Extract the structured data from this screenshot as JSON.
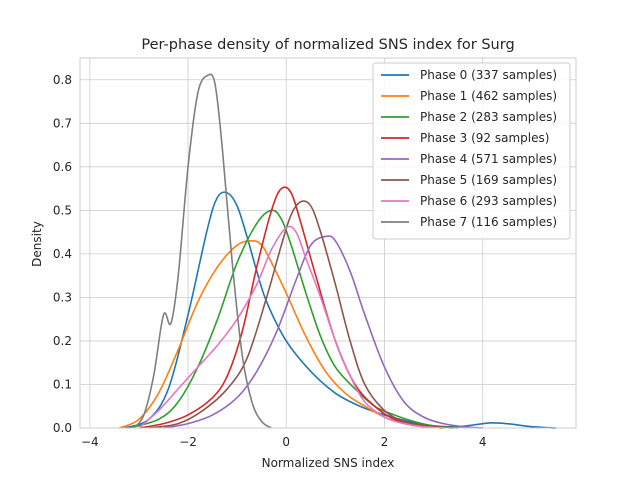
{
  "chart_data": {
    "type": "line",
    "title": "Per-phase density of normalized SNS index for Surg",
    "xlabel": "Normalized SNS index",
    "ylabel": "Density",
    "xlim": [
      -4.2,
      5.9
    ],
    "ylim": [
      0,
      0.85
    ],
    "xticks": [
      -4,
      -2,
      0,
      2,
      4
    ],
    "xtick_labels": [
      "−4",
      "−2",
      "0",
      "2",
      "4"
    ],
    "yticks": [
      0.0,
      0.1,
      0.2,
      0.3,
      0.4,
      0.5,
      0.6,
      0.7,
      0.8
    ],
    "ytick_labels": [
      "0.0",
      "0.1",
      "0.2",
      "0.3",
      "0.4",
      "0.5",
      "0.6",
      "0.7",
      "0.8"
    ],
    "grid": true,
    "legend_position": "upper right",
    "series": [
      {
        "name": "Phase 0 (337 samples)",
        "color": "#1f77b4",
        "x": [
          -3.3,
          -2.8,
          -2.4,
          -2.0,
          -1.6,
          -1.4,
          -1.2,
          -1.0,
          -0.8,
          -0.6,
          -0.4,
          0.0,
          0.5,
          1.0,
          1.5,
          2.0,
          2.5,
          3.0,
          3.5,
          4.0,
          4.2,
          4.5,
          5.0,
          5.5
        ],
        "y": [
          0.0,
          0.02,
          0.09,
          0.26,
          0.46,
          0.53,
          0.54,
          0.51,
          0.44,
          0.36,
          0.29,
          0.2,
          0.13,
          0.08,
          0.05,
          0.03,
          0.015,
          0.005,
          0.003,
          0.01,
          0.012,
          0.01,
          0.003,
          0.0
        ]
      },
      {
        "name": "Phase 1 (462 samples)",
        "color": "#ff7f0e",
        "x": [
          -3.4,
          -3.0,
          -2.6,
          -2.2,
          -1.8,
          -1.4,
          -1.0,
          -0.7,
          -0.5,
          -0.3,
          0.0,
          0.4,
          0.8,
          1.2,
          1.6,
          2.0,
          2.4,
          2.8,
          3.2
        ],
        "y": [
          0.0,
          0.02,
          0.08,
          0.18,
          0.29,
          0.37,
          0.42,
          0.43,
          0.42,
          0.38,
          0.31,
          0.21,
          0.13,
          0.08,
          0.05,
          0.025,
          0.01,
          0.003,
          0.0
        ]
      },
      {
        "name": "Phase 2 (283 samples)",
        "color": "#2ca02c",
        "x": [
          -3.2,
          -2.6,
          -2.2,
          -1.8,
          -1.4,
          -1.0,
          -0.6,
          -0.3,
          -0.1,
          0.1,
          0.4,
          0.7,
          1.0,
          1.4,
          1.8,
          2.2,
          2.6,
          3.0,
          3.5
        ],
        "y": [
          0.0,
          0.02,
          0.06,
          0.14,
          0.25,
          0.38,
          0.47,
          0.5,
          0.48,
          0.42,
          0.31,
          0.21,
          0.14,
          0.09,
          0.05,
          0.03,
          0.015,
          0.005,
          0.0
        ]
      },
      {
        "name": "Phase 3 (92 samples)",
        "color": "#d62728",
        "x": [
          -3.0,
          -2.5,
          -2.0,
          -1.5,
          -1.2,
          -0.9,
          -0.6,
          -0.3,
          -0.1,
          0.1,
          0.3,
          0.6,
          1.0,
          1.4,
          1.8,
          2.2,
          2.6,
          3.0,
          3.4
        ],
        "y": [
          0.0,
          0.01,
          0.03,
          0.07,
          0.12,
          0.22,
          0.37,
          0.5,
          0.55,
          0.54,
          0.47,
          0.35,
          0.2,
          0.1,
          0.05,
          0.02,
          0.01,
          0.003,
          0.0
        ]
      },
      {
        "name": "Phase 4 (571 samples)",
        "color": "#9467bd",
        "x": [
          -2.5,
          -2.0,
          -1.5,
          -1.0,
          -0.6,
          -0.2,
          0.2,
          0.5,
          0.8,
          1.0,
          1.3,
          1.6,
          2.0,
          2.4,
          2.8,
          3.2,
          3.6,
          4.0
        ],
        "y": [
          0.0,
          0.01,
          0.03,
          0.07,
          0.13,
          0.22,
          0.34,
          0.42,
          0.44,
          0.43,
          0.36,
          0.26,
          0.14,
          0.06,
          0.025,
          0.01,
          0.003,
          0.0
        ]
      },
      {
        "name": "Phase 5 (169 samples)",
        "color": "#8c564b",
        "x": [
          -2.8,
          -2.2,
          -1.7,
          -1.2,
          -0.8,
          -0.4,
          -0.1,
          0.1,
          0.3,
          0.5,
          0.7,
          1.0,
          1.3,
          1.6,
          2.0,
          2.4,
          2.8,
          3.2
        ],
        "y": [
          0.0,
          0.01,
          0.04,
          0.09,
          0.16,
          0.3,
          0.42,
          0.49,
          0.52,
          0.51,
          0.45,
          0.33,
          0.2,
          0.1,
          0.04,
          0.015,
          0.005,
          0.0
        ]
      },
      {
        "name": "Phase 6 (293 samples)",
        "color": "#e377c2",
        "x": [
          -3.0,
          -2.6,
          -2.2,
          -1.8,
          -1.4,
          -1.0,
          -0.6,
          -0.3,
          0.0,
          0.2,
          0.4,
          0.7,
          1.0,
          1.3,
          1.6,
          2.0,
          2.4,
          2.8,
          3.2
        ],
        "y": [
          0.0,
          0.04,
          0.09,
          0.14,
          0.19,
          0.25,
          0.33,
          0.41,
          0.46,
          0.45,
          0.39,
          0.3,
          0.2,
          0.12,
          0.06,
          0.025,
          0.01,
          0.003,
          0.0
        ]
      },
      {
        "name": "Phase 7 (116 samples)",
        "color": "#7f7f7f",
        "x": [
          -3.1,
          -2.9,
          -2.7,
          -2.5,
          -2.35,
          -2.2,
          -2.0,
          -1.8,
          -1.6,
          -1.45,
          -1.3,
          -1.1,
          -0.9,
          -0.7,
          -0.5,
          -0.3
        ],
        "y": [
          0.0,
          0.03,
          0.12,
          0.26,
          0.24,
          0.35,
          0.6,
          0.77,
          0.81,
          0.79,
          0.64,
          0.38,
          0.17,
          0.06,
          0.015,
          0.0
        ]
      }
    ]
  }
}
